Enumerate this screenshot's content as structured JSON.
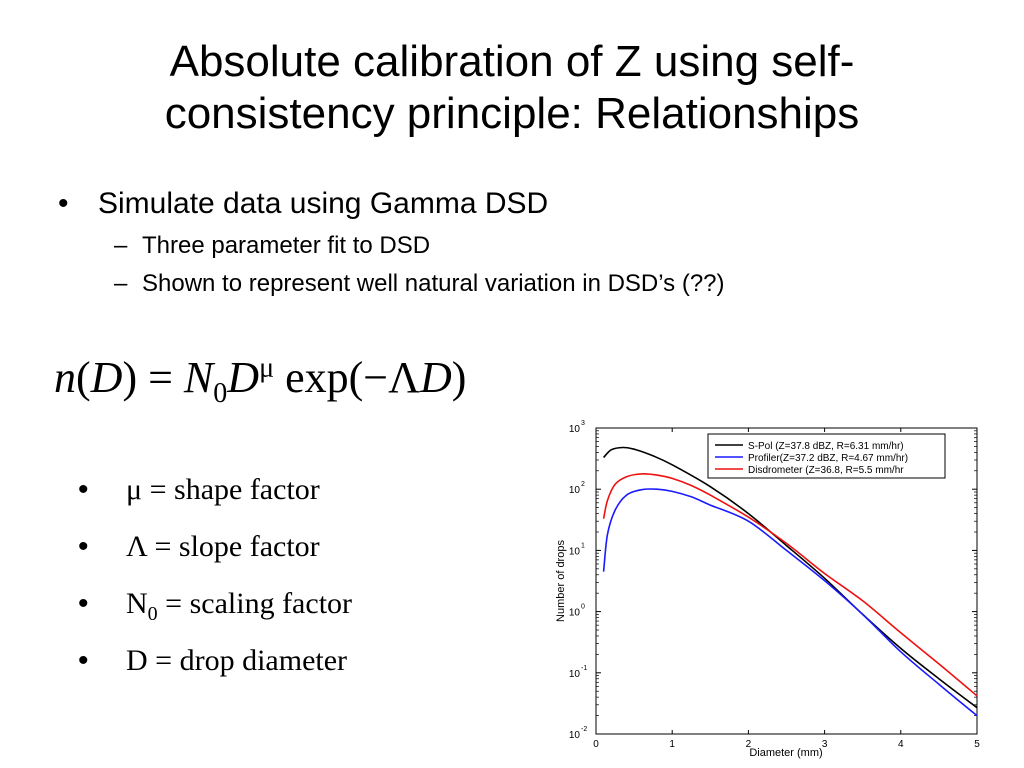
{
  "slide": {
    "title_line1": "Absolute calibration of Z using self-",
    "title_line2": "consistency principle: Relationships",
    "bullet": "Simulate data using Gamma DSD",
    "sub_bullets": [
      "Three parameter fit to DSD",
      "Shown to represent well natural variation in DSD’s (??)"
    ],
    "equation": {
      "lhs_n": "n",
      "lhs_open": "(",
      "lhs_D": "D",
      "lhs_close": ")",
      "equals": "=",
      "N": "N",
      "N_sub": "0",
      "D": "D",
      "mu": "μ",
      "exp": "exp(",
      "minus": "−",
      "Lambda": "Λ",
      "D2": "D",
      "close": ")"
    },
    "definitions": [
      {
        "sym": "μ",
        "text": " = shape factor"
      },
      {
        "sym": "Λ",
        "text": " = slope factor"
      },
      {
        "sym": "N",
        "sub": "0",
        "text": " = scaling factor"
      },
      {
        "sym": "D",
        "text": " = drop diameter"
      }
    ],
    "bullet_glyph": "•",
    "dash_glyph": "–"
  },
  "chart_data": {
    "type": "line",
    "xlabel": "Diameter (mm)",
    "ylabel": "Number of drops",
    "xlim": [
      0,
      5
    ],
    "ylim": [
      0.01,
      1000
    ],
    "y_scale": "log",
    "x_ticks": [
      "0",
      "1",
      "2",
      "3",
      "4",
      "5"
    ],
    "y_ticks": [
      {
        "base": "10",
        "exp": "-2"
      },
      {
        "base": "10",
        "exp": "-1"
      },
      {
        "base": "10",
        "exp": "0"
      },
      {
        "base": "10",
        "exp": "1"
      },
      {
        "base": "10",
        "exp": "2"
      },
      {
        "base": "10",
        "exp": "3"
      }
    ],
    "legend_position": "top-right",
    "series": [
      {
        "name": "S-Pol (Z=37.8 dBZ, R=6.31 mm/hr)",
        "color": "#000000",
        "x": [
          0.1,
          0.2,
          0.35,
          0.5,
          0.75,
          1.0,
          1.5,
          2.0,
          2.5,
          3.0,
          3.5,
          4.0,
          4.5,
          5.0
        ],
        "y": [
          330,
          440,
          480,
          450,
          350,
          250,
          110,
          40,
          12,
          3.5,
          0.9,
          0.25,
          0.08,
          0.027
        ]
      },
      {
        "name": "Profiler(Z=37.2 dBZ, R=4.67 mm/hr)",
        "color": "#1a1aff",
        "x": [
          0.1,
          0.15,
          0.25,
          0.4,
          0.6,
          0.8,
          1.0,
          1.25,
          1.5,
          2.0,
          2.5,
          3.0,
          3.5,
          4.0,
          4.5,
          5.0
        ],
        "y": [
          4.5,
          18,
          45,
          80,
          98,
          100,
          92,
          75,
          55,
          30,
          10,
          3.2,
          0.9,
          0.22,
          0.065,
          0.02
        ]
      },
      {
        "name": "Disdrometer (Z=36.8, R=5.5 mm/hr",
        "color": "#ee1111",
        "x": [
          0.1,
          0.15,
          0.25,
          0.4,
          0.6,
          0.8,
          1.0,
          1.25,
          1.5,
          2.0,
          2.5,
          3.0,
          3.5,
          4.0,
          4.5,
          5.0
        ],
        "y": [
          33,
          65,
          120,
          160,
          178,
          170,
          150,
          115,
          80,
          35,
          13,
          4.2,
          1.5,
          0.45,
          0.14,
          0.042
        ]
      }
    ]
  }
}
